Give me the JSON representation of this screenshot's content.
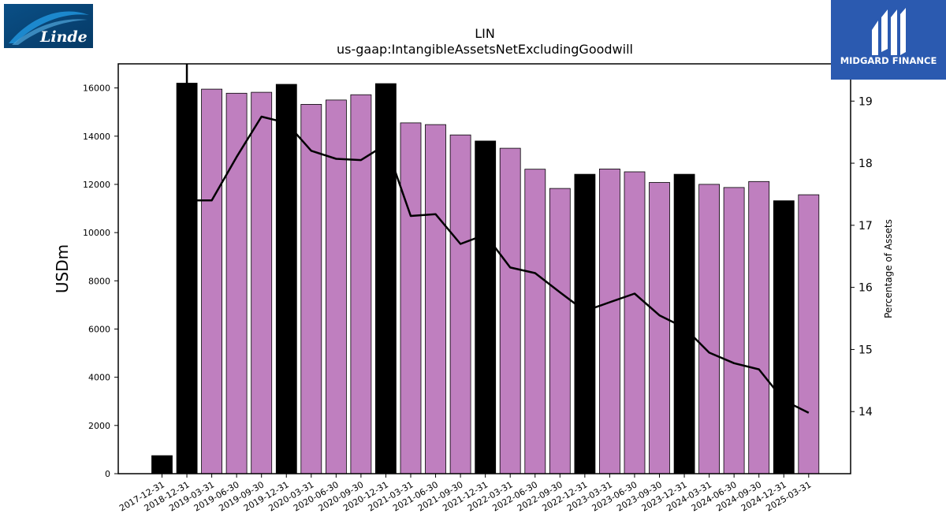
{
  "logos": {
    "left_text": "Linde",
    "right_text": "MIDGARD FINANCE"
  },
  "chart_data": {
    "type": "bar",
    "title": "LIN",
    "subtitle": "us-gaap:IntangibleAssetsNetExcludingGoodwill",
    "ylabel": "USDm",
    "ylabel_right": "Percentage of Assets",
    "ylim": [
      0,
      17000
    ],
    "ylim_right": [
      13.0,
      19.6
    ],
    "yticks": [
      0,
      2000,
      4000,
      6000,
      8000,
      10000,
      12000,
      14000,
      16000
    ],
    "yticks_right": [
      14,
      15,
      16,
      17,
      18,
      19
    ],
    "grid": false,
    "categories": [
      "2017-12-31",
      "2018-12-31",
      "2019-03-31",
      "2019-06-30",
      "2019-09-30",
      "2019-12-31",
      "2020-03-31",
      "2020-06-30",
      "2020-09-30",
      "2020-12-31",
      "2021-03-31",
      "2021-06-30",
      "2021-09-30",
      "2021-12-31",
      "2022-03-31",
      "2022-06-30",
      "2022-09-30",
      "2022-12-31",
      "2023-03-31",
      "2023-06-30",
      "2023-09-30",
      "2023-12-31",
      "2024-03-31",
      "2024-06-30",
      "2024-09-30",
      "2024-12-31",
      "2025-03-31"
    ],
    "series": [
      {
        "type": "bar",
        "values": [
          750,
          16200,
          15950,
          15780,
          15820,
          16150,
          15320,
          15500,
          15720,
          16180,
          14550,
          14480,
          14050,
          13800,
          13500,
          12630,
          11830,
          12420,
          12640,
          12520,
          12080,
          12420,
          12000,
          11870,
          12120,
          11320,
          11570
        ],
        "annual": [
          true,
          true,
          false,
          false,
          false,
          true,
          false,
          false,
          false,
          true,
          false,
          false,
          false,
          true,
          false,
          false,
          false,
          true,
          false,
          false,
          false,
          true,
          false,
          false,
          false,
          true,
          false
        ],
        "colors": {
          "annual": "#000000",
          "quarterly": "#bf7fbf"
        }
      },
      {
        "type": "line",
        "axis": "right",
        "color": "#000000",
        "values": [
          null,
          17.4,
          17.4,
          18.1,
          18.75,
          18.65,
          18.2,
          18.07,
          18.05,
          18.3,
          17.15,
          17.18,
          16.7,
          16.85,
          16.32,
          16.23,
          15.92,
          15.62,
          15.76,
          15.9,
          15.55,
          15.35,
          14.95,
          14.78,
          14.68,
          14.18,
          13.98
        ],
        "spike_top": 19.6
      }
    ]
  }
}
